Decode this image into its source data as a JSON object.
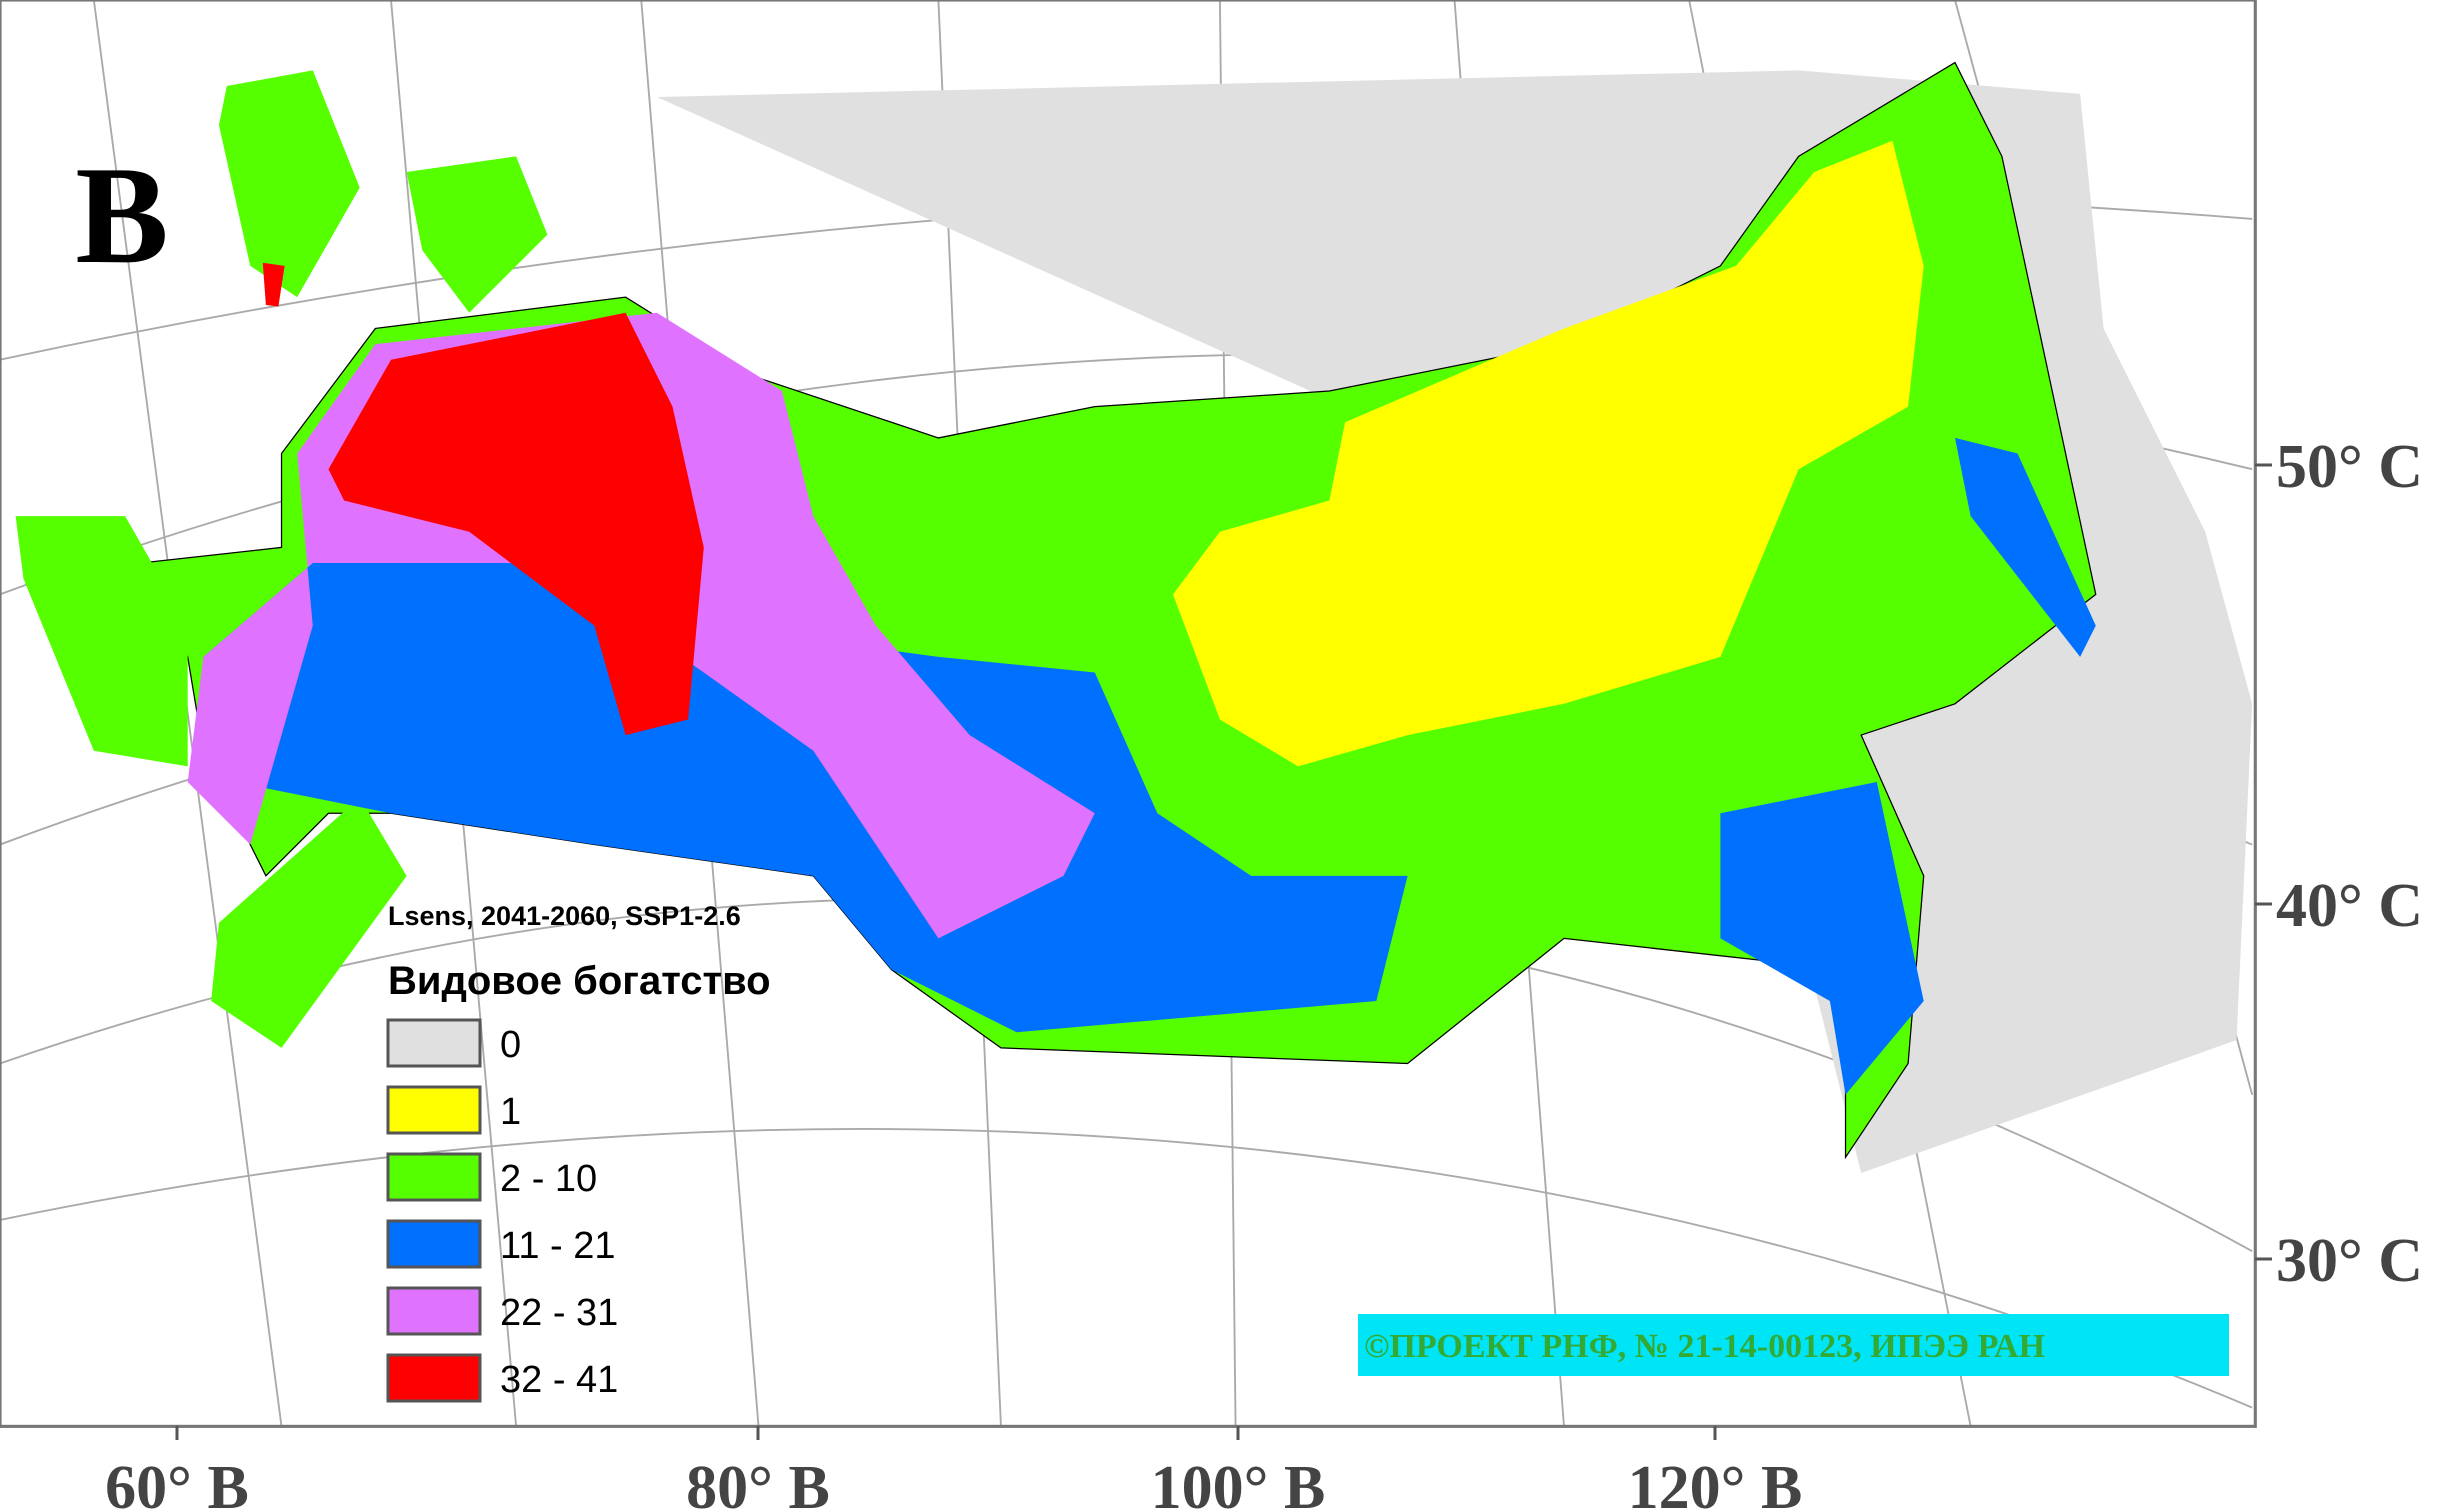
{
  "panel_letter": "В",
  "legend": {
    "subtitle": "Lsens, 2041-2060, SSP1-2.6",
    "title": "Видовое богатство",
    "items": [
      {
        "label": "0",
        "color": "#e0e0e0"
      },
      {
        "label": "1",
        "color": "#ffff00"
      },
      {
        "label": "2 - 10",
        "color": "#55ff00"
      },
      {
        "label": "11 - 21",
        "color": "#0070ff"
      },
      {
        "label": "22 - 31",
        "color": "#df73ff"
      },
      {
        "label": "32 - 41",
        "color": "#ff0000"
      }
    ]
  },
  "longitude_labels": [
    "60° В",
    "80° В",
    "100° В",
    "120° В"
  ],
  "latitude_labels": [
    "50° С",
    "40° С",
    "30° С"
  ],
  "copyright": "©ПРОЕКТ РНФ, № 21-14-00123, ИПЭЭ РАН"
}
